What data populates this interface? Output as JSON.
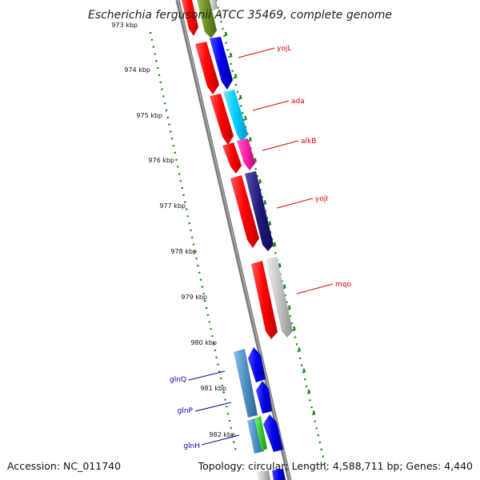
{
  "title": "Escherichia fergusonii ATCC 35469, complete genome",
  "footer": {
    "accession": "Accession: NC_011740",
    "stats": "Topology: circular; Length: 4,588,711 bp; Genes: 4,440"
  },
  "ticks": [
    "973 kbp",
    "974 kbp",
    "975 kbp",
    "976 kbp",
    "977 kbp",
    "978 kbp",
    "979 kbp",
    "980 kbp",
    "981 kbp",
    "982 kbp"
  ],
  "genes": {
    "right": [
      "yojL",
      "ada",
      "alkB",
      "yojI",
      "mqo"
    ],
    "left": [
      "glnQ",
      "glnP",
      "glnH"
    ]
  },
  "colors": {
    "red": "#ff0000",
    "blue": "#0000ee",
    "cyan": "#00ccff",
    "magenta": "#ff22aa",
    "navy": "#201a7a",
    "gray": "#c4c4c4",
    "steel": "#4d8fc4",
    "green": "#33cc33",
    "olive": "#6b8e23",
    "tick_green": "#1a8a1a",
    "label_red": "#dd0000",
    "label_blue": "#0000aa"
  }
}
